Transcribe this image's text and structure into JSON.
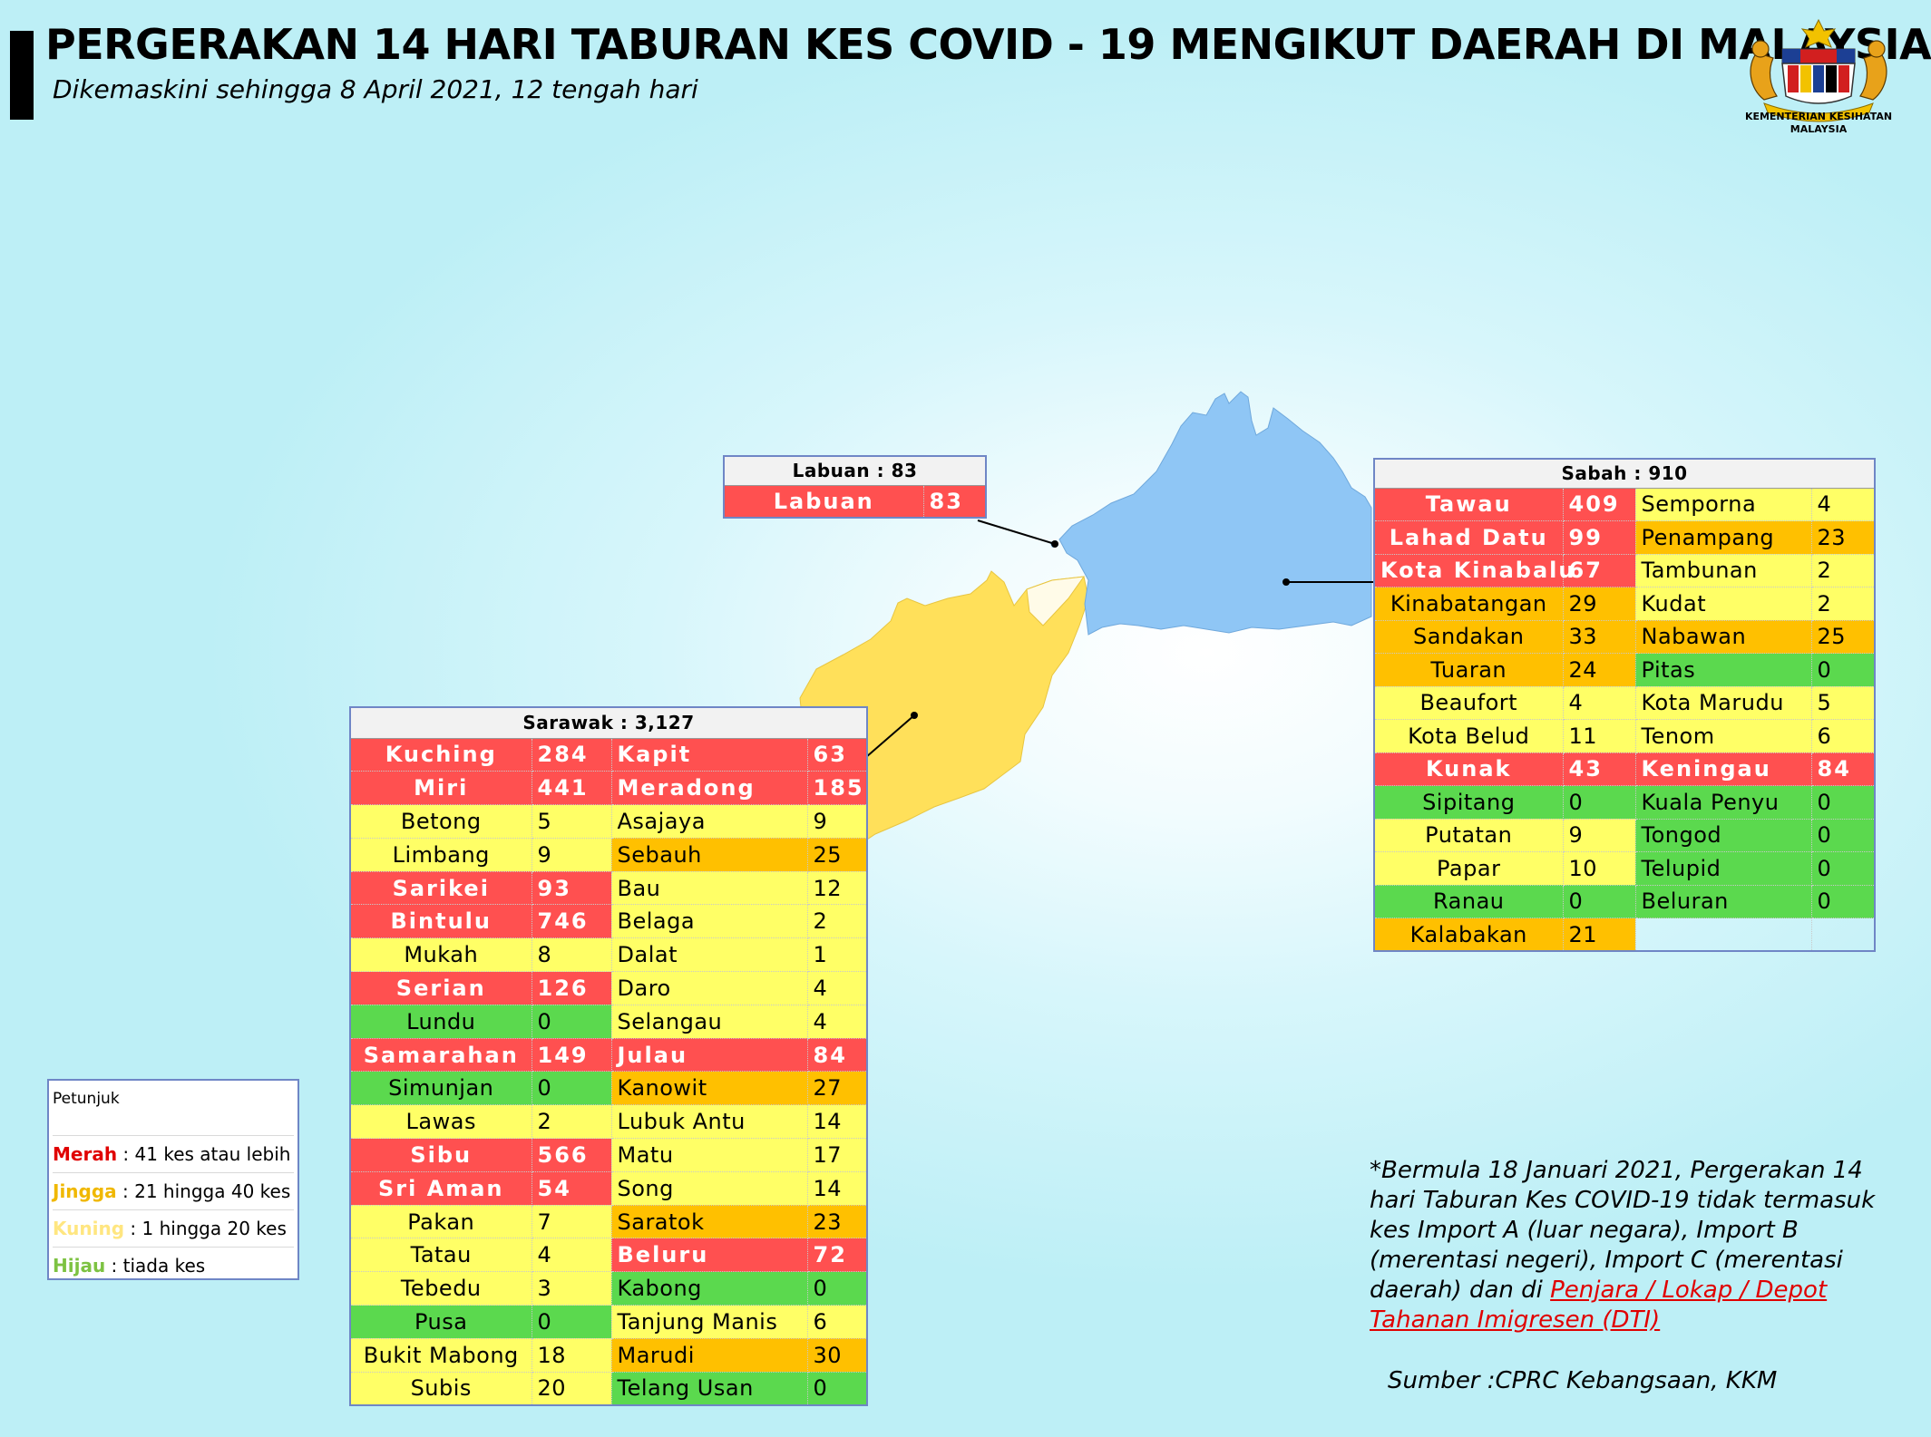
{
  "title": "PERGERAKAN 14 HARI TABURAN KES COVID - 19 MENGIKUT DAERAH DI MALAYSIA",
  "subtitle": "Dikemaskini sehingga 8 April 2021, 12 tengah hari",
  "logo_text": "KEMENTERIAN KESIHATAN MALAYSIA",
  "colors": {
    "merah": "#ff5050",
    "jingga": "#ffc000",
    "kuning": "#ffff66",
    "hijau": "#5bd94e",
    "sabah_map": "#8fc6f5",
    "sarawak_map": "#ffe05a"
  },
  "labuan": {
    "header": "Labuan : 83",
    "rows": [
      {
        "name": "Labuan",
        "value": "83",
        "level": "red"
      }
    ]
  },
  "sabah": {
    "header": "Sabah : 910",
    "left": [
      {
        "name": "Tawau",
        "value": "409",
        "level": "red"
      },
      {
        "name": "Lahad Datu",
        "value": "99",
        "level": "red"
      },
      {
        "name": "Kota Kinabalu",
        "value": "67",
        "level": "red"
      },
      {
        "name": "Kinabatangan",
        "value": "29",
        "level": "orange"
      },
      {
        "name": "Sandakan",
        "value": "33",
        "level": "orange"
      },
      {
        "name": "Tuaran",
        "value": "24",
        "level": "orange"
      },
      {
        "name": "Beaufort",
        "value": "4",
        "level": "yellow"
      },
      {
        "name": "Kota Belud",
        "value": "11",
        "level": "yellow"
      },
      {
        "name": "Kunak",
        "value": "43",
        "level": "red"
      },
      {
        "name": "Sipitang",
        "value": "0",
        "level": "green"
      },
      {
        "name": "Putatan",
        "value": "9",
        "level": "yellow"
      },
      {
        "name": "Papar",
        "value": "10",
        "level": "yellow"
      },
      {
        "name": "Ranau",
        "value": "0",
        "level": "green"
      },
      {
        "name": "Kalabakan",
        "value": "21",
        "level": "orange"
      }
    ],
    "right": [
      {
        "name": "Semporna",
        "value": "4",
        "level": "yellow"
      },
      {
        "name": "Penampang",
        "value": "23",
        "level": "orange"
      },
      {
        "name": "Tambunan",
        "value": "2",
        "level": "yellow"
      },
      {
        "name": "Kudat",
        "value": "2",
        "level": "yellow"
      },
      {
        "name": "Nabawan",
        "value": "25",
        "level": "orange"
      },
      {
        "name": "Pitas",
        "value": "0",
        "level": "green"
      },
      {
        "name": "Kota Marudu",
        "value": "5",
        "level": "yellow"
      },
      {
        "name": "Tenom",
        "value": "6",
        "level": "yellow"
      },
      {
        "name": "Keningau",
        "value": "84",
        "level": "red"
      },
      {
        "name": "Kuala Penyu",
        "value": "0",
        "level": "green"
      },
      {
        "name": "Tongod",
        "value": "0",
        "level": "green"
      },
      {
        "name": "Telupid",
        "value": "0",
        "level": "green"
      },
      {
        "name": "Beluran",
        "value": "0",
        "level": "green"
      },
      {
        "name": "",
        "value": "",
        "level": "blank"
      }
    ]
  },
  "sarawak": {
    "header": "Sarawak : 3,127",
    "left": [
      {
        "name": "Kuching",
        "value": "284",
        "level": "red"
      },
      {
        "name": "Miri",
        "value": "441",
        "level": "red"
      },
      {
        "name": "Betong",
        "value": "5",
        "level": "yellow"
      },
      {
        "name": "Limbang",
        "value": "9",
        "level": "yellow"
      },
      {
        "name": "Sarikei",
        "value": "93",
        "level": "red"
      },
      {
        "name": "Bintulu",
        "value": "746",
        "level": "red"
      },
      {
        "name": "Mukah",
        "value": "8",
        "level": "yellow"
      },
      {
        "name": "Serian",
        "value": "126",
        "level": "red"
      },
      {
        "name": "Lundu",
        "value": "0",
        "level": "green"
      },
      {
        "name": "Samarahan",
        "value": "149",
        "level": "red"
      },
      {
        "name": "Simunjan",
        "value": "0",
        "level": "green"
      },
      {
        "name": "Lawas",
        "value": "2",
        "level": "yellow"
      },
      {
        "name": "Sibu",
        "value": "566",
        "level": "red"
      },
      {
        "name": "Sri Aman",
        "value": "54",
        "level": "red"
      },
      {
        "name": "Pakan",
        "value": "7",
        "level": "yellow"
      },
      {
        "name": "Tatau",
        "value": "4",
        "level": "yellow"
      },
      {
        "name": "Tebedu",
        "value": "3",
        "level": "yellow"
      },
      {
        "name": "Pusa",
        "value": "0",
        "level": "green"
      },
      {
        "name": "Bukit Mabong",
        "value": "18",
        "level": "yellow"
      },
      {
        "name": "Subis",
        "value": "20",
        "level": "yellow"
      }
    ],
    "right": [
      {
        "name": "Kapit",
        "value": "63",
        "level": "red"
      },
      {
        "name": "Meradong",
        "value": "185",
        "level": "red"
      },
      {
        "name": "Asajaya",
        "value": "9",
        "level": "yellow"
      },
      {
        "name": "Sebauh",
        "value": "25",
        "level": "orange"
      },
      {
        "name": "Bau",
        "value": "12",
        "level": "yellow"
      },
      {
        "name": "Belaga",
        "value": "2",
        "level": "yellow"
      },
      {
        "name": "Dalat",
        "value": "1",
        "level": "yellow"
      },
      {
        "name": "Daro",
        "value": "4",
        "level": "yellow"
      },
      {
        "name": "Selangau",
        "value": "4",
        "level": "yellow"
      },
      {
        "name": "Julau",
        "value": "84",
        "level": "red"
      },
      {
        "name": "Kanowit",
        "value": "27",
        "level": "orange"
      },
      {
        "name": "Lubuk Antu",
        "value": "14",
        "level": "yellow"
      },
      {
        "name": "Matu",
        "value": "17",
        "level": "yellow"
      },
      {
        "name": "Song",
        "value": "14",
        "level": "yellow"
      },
      {
        "name": "Saratok",
        "value": "23",
        "level": "orange"
      },
      {
        "name": "Beluru",
        "value": "72",
        "level": "red"
      },
      {
        "name": "Kabong",
        "value": "0",
        "level": "green"
      },
      {
        "name": "Tanjung Manis",
        "value": "6",
        "level": "yellow"
      },
      {
        "name": "Marudi",
        "value": "30",
        "level": "orange"
      },
      {
        "name": "Telang Usan",
        "value": "0",
        "level": "green"
      }
    ]
  },
  "legend": {
    "title": "Petunjuk",
    "items": [
      {
        "key": "Merah",
        "text": " : 41 kes atau lebih",
        "color": "#e00000"
      },
      {
        "key": "Jingga",
        "text": " : 21 hingga 40 kes",
        "color": "#f0b800"
      },
      {
        "key": "Kuning",
        "text": " : 1 hingga 20 kes",
        "color": "#ffe680"
      },
      {
        "key": "Hijau",
        "text": " : tiada kes",
        "color": "#7dc242"
      }
    ]
  },
  "note": {
    "text": "*Bermula 18 Januari 2021, Pergerakan 14 hari Taburan Kes COVID-19 tidak termasuk kes Import A (luar negara), Import B (merentasi negeri), Import C (merentasi daerah) dan di ",
    "link": "Penjara / Lokap / Depot Tahanan Imigresen (DTI)"
  },
  "source": "Sumber :CPRC Kebangsaan,  KKM"
}
